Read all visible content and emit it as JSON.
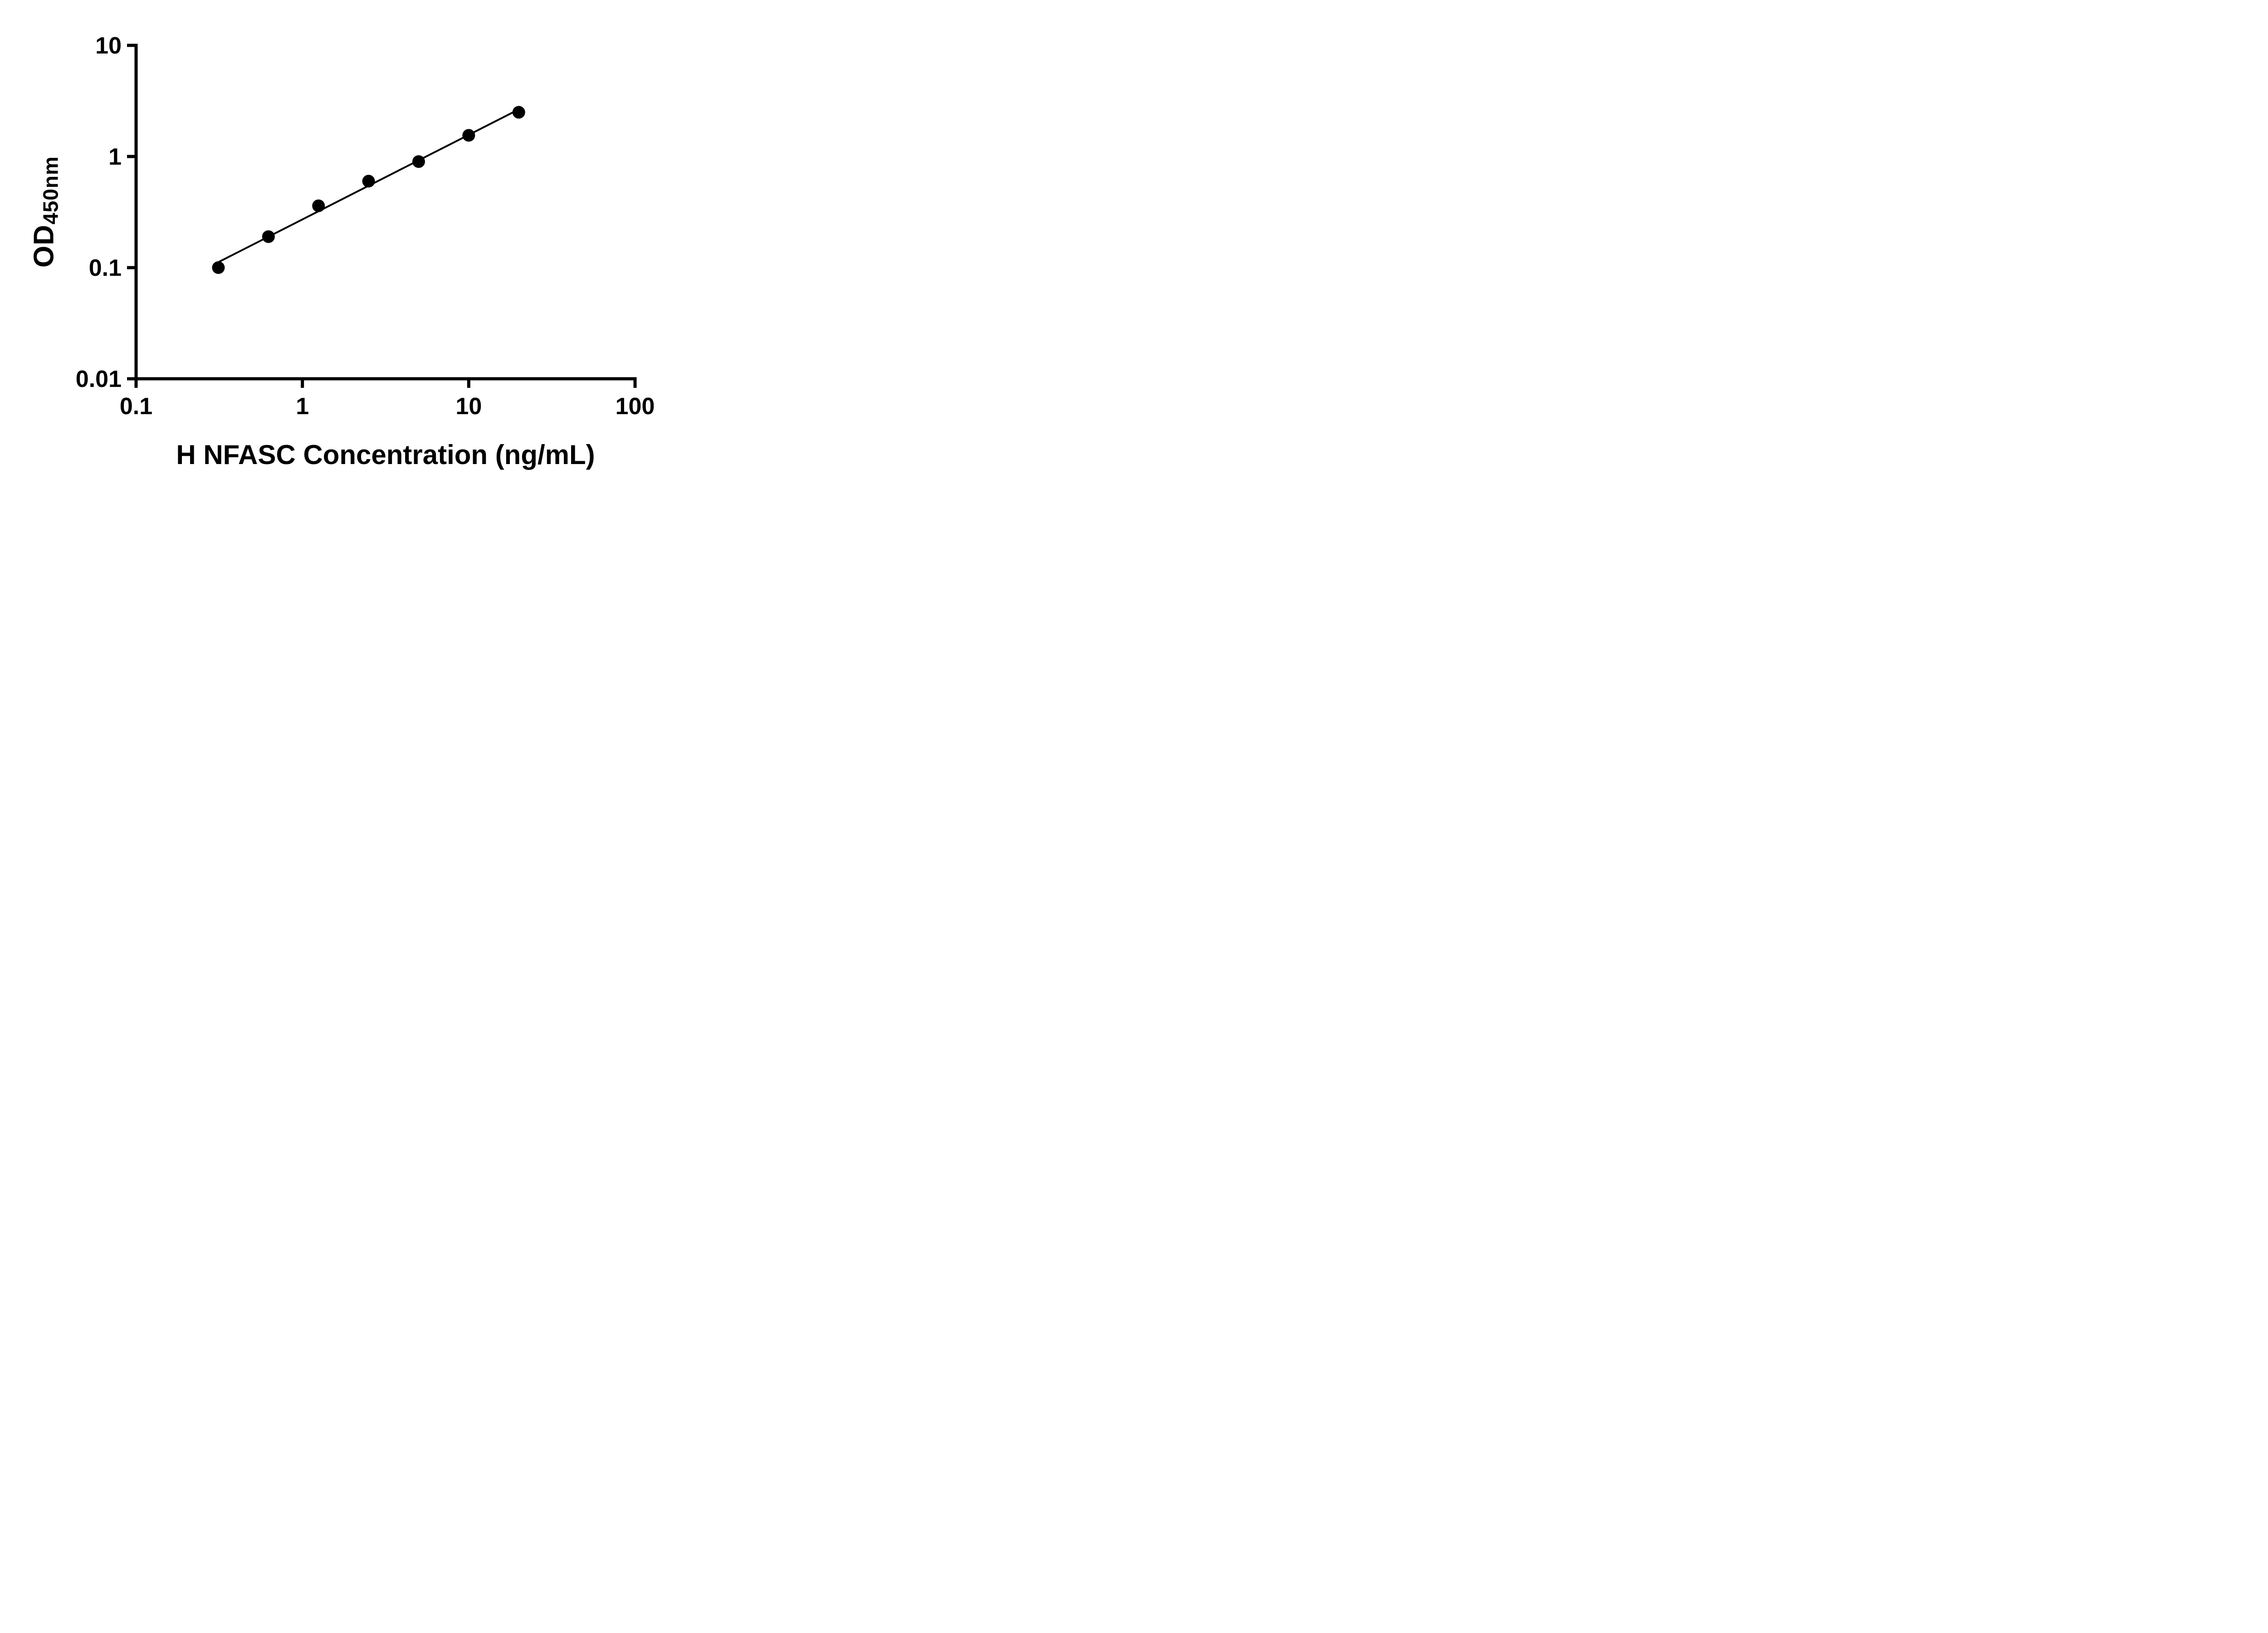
{
  "chart_data": {
    "type": "scatter",
    "x": [
      0.3125,
      0.625,
      1.25,
      2.5,
      5,
      10,
      20
    ],
    "y": [
      0.1,
      0.19,
      0.36,
      0.6,
      0.9,
      1.55,
      2.5
    ],
    "title": "",
    "xlabel": "H NFASC Concentration (ng/mL)",
    "ylabel_main": "OD",
    "ylabel_sub": "450nm",
    "xscale": "log",
    "yscale": "log",
    "xlim": [
      0.1,
      100
    ],
    "ylim": [
      0.01,
      10
    ],
    "x_ticks": [
      {
        "value": 0.1,
        "label": "0.1"
      },
      {
        "value": 1,
        "label": "1"
      },
      {
        "value": 10,
        "label": "10"
      },
      {
        "value": 100,
        "label": "100"
      }
    ],
    "y_ticks": [
      {
        "value": 0.01,
        "label": "0.01"
      },
      {
        "value": 0.1,
        "label": "0.1"
      },
      {
        "value": 1,
        "label": "1"
      },
      {
        "value": 10,
        "label": "10"
      }
    ],
    "trend_line": true,
    "legend": "none",
    "grid": "off",
    "marker_color": "#000000",
    "line_color": "#000000",
    "axis_color": "#000000",
    "background_color": "#ffffff"
  }
}
